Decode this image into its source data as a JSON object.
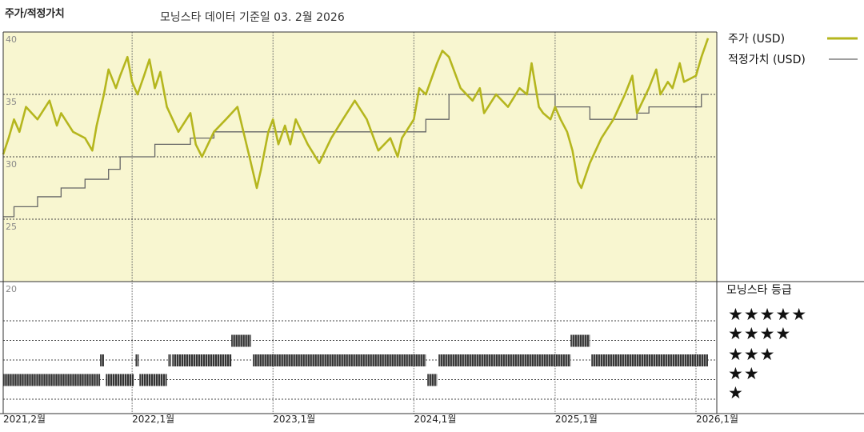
{
  "header": {
    "title": "주가/적정가치",
    "subtitle": "모닝스타 데이터 기준일 03. 2월 2026"
  },
  "colors": {
    "price_line": "#b5b61e",
    "fair_value_line": "#666666",
    "plot_bg": "#f8f6d0",
    "rating_bar": "#333333"
  },
  "legend": {
    "price": "주가 (USD)",
    "fair_value": "적정가치 (USD)",
    "rating_title": "모닝스타 등급",
    "stars": [
      "★★★★★",
      "★★★★",
      "★★★",
      "★★",
      "★"
    ]
  },
  "chart_data": {
    "type": "line",
    "y_ticks": [
      "40",
      "35",
      "30",
      "25",
      "20"
    ],
    "ylim": [
      20,
      40
    ],
    "x_ticks": [
      "2021,2월",
      "2022,1월",
      "2023,1월",
      "2024,1월",
      "2025,1월",
      "2026,1월"
    ],
    "xlim": [
      "2021-02",
      "2026-02"
    ],
    "series": [
      {
        "name": "주가 (USD)",
        "points": [
          [
            "2021-02",
            30.2
          ],
          [
            "2021-02-15",
            31.5
          ],
          [
            "2021-03",
            33.0
          ],
          [
            "2021-03-15",
            32.0
          ],
          [
            "2021-04",
            34.0
          ],
          [
            "2021-05",
            33.0
          ],
          [
            "2021-06",
            34.5
          ],
          [
            "2021-06-20",
            32.5
          ],
          [
            "2021-07",
            33.5
          ],
          [
            "2021-08",
            32.0
          ],
          [
            "2021-09",
            31.5
          ],
          [
            "2021-09-20",
            30.5
          ],
          [
            "2021-10",
            32.5
          ],
          [
            "2021-10-20",
            35.0
          ],
          [
            "2021-11",
            37.0
          ],
          [
            "2021-11-20",
            35.5
          ],
          [
            "2021-12",
            36.5
          ],
          [
            "2021-12-20",
            38.0
          ],
          [
            "2022-01",
            36.0
          ],
          [
            "2022-01-15",
            35.0
          ],
          [
            "2022-02",
            36.5
          ],
          [
            "2022-02-15",
            37.8
          ],
          [
            "2022-03",
            35.5
          ],
          [
            "2022-03-15",
            36.8
          ],
          [
            "2022-04",
            34.0
          ],
          [
            "2022-05",
            32.0
          ],
          [
            "2022-06",
            33.5
          ],
          [
            "2022-06-15",
            31.0
          ],
          [
            "2022-07",
            30.0
          ],
          [
            "2022-08",
            32.0
          ],
          [
            "2022-09",
            33.0
          ],
          [
            "2022-10",
            34.0
          ],
          [
            "2022-11",
            30.0
          ],
          [
            "2022-11-20",
            27.5
          ],
          [
            "2022-12",
            29.0
          ],
          [
            "2022-12-20",
            32.0
          ],
          [
            "2023-01",
            33.0
          ],
          [
            "2023-01-15",
            31.0
          ],
          [
            "2023-02",
            32.5
          ],
          [
            "2023-02-15",
            31.0
          ],
          [
            "2023-03",
            33.0
          ],
          [
            "2023-04",
            31.0
          ],
          [
            "2023-05",
            29.5
          ],
          [
            "2023-06",
            31.5
          ],
          [
            "2023-07",
            33.0
          ],
          [
            "2023-08",
            34.5
          ],
          [
            "2023-09",
            33.0
          ],
          [
            "2023-10",
            30.5
          ],
          [
            "2023-11",
            31.5
          ],
          [
            "2023-11-20",
            30.0
          ],
          [
            "2023-12",
            31.5
          ],
          [
            "2024-01",
            33.0
          ],
          [
            "2024-01-15",
            35.5
          ],
          [
            "2024-02",
            35.0
          ],
          [
            "2024-03",
            37.5
          ],
          [
            "2024-03-15",
            38.5
          ],
          [
            "2024-04",
            38.0
          ],
          [
            "2024-05",
            35.5
          ],
          [
            "2024-06",
            34.5
          ],
          [
            "2024-06-20",
            35.5
          ],
          [
            "2024-07",
            33.5
          ],
          [
            "2024-08",
            35.0
          ],
          [
            "2024-09",
            34.0
          ],
          [
            "2024-10",
            35.5
          ],
          [
            "2024-10-20",
            35.0
          ],
          [
            "2024-11",
            37.5
          ],
          [
            "2024-11-20",
            34.0
          ],
          [
            "2024-12",
            33.5
          ],
          [
            "2024-12-20",
            33.0
          ],
          [
            "2025-01",
            34.0
          ],
          [
            "2025-01-15",
            33.0
          ],
          [
            "2025-02",
            32.0
          ],
          [
            "2025-02-15",
            30.5
          ],
          [
            "2025-03",
            28.0
          ],
          [
            "2025-03-10",
            27.5
          ],
          [
            "2025-04",
            29.5
          ],
          [
            "2025-05",
            31.5
          ],
          [
            "2025-06",
            33.0
          ],
          [
            "2025-07",
            35.0
          ],
          [
            "2025-07-20",
            36.5
          ],
          [
            "2025-08",
            33.5
          ],
          [
            "2025-09",
            35.5
          ],
          [
            "2025-09-20",
            37.0
          ],
          [
            "2025-10",
            35.0
          ],
          [
            "2025-10-20",
            36.0
          ],
          [
            "2025-11",
            35.5
          ],
          [
            "2025-11-20",
            37.5
          ],
          [
            "2025-12",
            36.0
          ],
          [
            "2026-01",
            36.5
          ],
          [
            "2026-01-15",
            38.0
          ],
          [
            "2026-02",
            39.5
          ]
        ]
      },
      {
        "name": "적정가치 (USD)",
        "step_points": [
          [
            "2021-02",
            25.2
          ],
          [
            "2021-03",
            26.0
          ],
          [
            "2021-05",
            26.8
          ],
          [
            "2021-07",
            27.5
          ],
          [
            "2021-09",
            28.2
          ],
          [
            "2021-11",
            29.0
          ],
          [
            "2021-12",
            30.0
          ],
          [
            "2022-03",
            31.0
          ],
          [
            "2022-06",
            31.5
          ],
          [
            "2022-08",
            32.0
          ],
          [
            "2023-06",
            32.0
          ],
          [
            "2023-12",
            32.0
          ],
          [
            "2024-02",
            33.0
          ],
          [
            "2024-04",
            35.0
          ],
          [
            "2024-07",
            35.0
          ],
          [
            "2024-09",
            35.0
          ],
          [
            "2025-01",
            34.0
          ],
          [
            "2025-04",
            33.0
          ],
          [
            "2025-08",
            33.5
          ],
          [
            "2025-09",
            34.0
          ],
          [
            "2025-12",
            34.0
          ],
          [
            "2026-01-15",
            35.0
          ],
          [
            "2026-02",
            35.0
          ]
        ]
      }
    ],
    "ratings": {
      "name": "모닝스타 등급",
      "segments": [
        {
          "from": "2021-02",
          "to": "2021-10-10",
          "stars": 2
        },
        {
          "from": "2021-10-10",
          "to": "2021-10-20",
          "stars": 3
        },
        {
          "from": "2021-10-25",
          "to": "2022-01-05",
          "stars": 2
        },
        {
          "from": "2022-01-10",
          "to": "2022-01-18",
          "stars": 3
        },
        {
          "from": "2022-01-20",
          "to": "2022-04-01",
          "stars": 2
        },
        {
          "from": "2022-04-05",
          "to": "2022-04-12",
          "stars": 3
        },
        {
          "from": "2022-04-15",
          "to": "2022-09-15",
          "stars": 3
        },
        {
          "from": "2022-09-15",
          "to": "2022-11-05",
          "stars": 4
        },
        {
          "from": "2022-11-10",
          "to": "2024-02-01",
          "stars": 3
        },
        {
          "from": "2024-02-05",
          "to": "2024-03-01",
          "stars": 2
        },
        {
          "from": "2024-03-05",
          "to": "2025-02-10",
          "stars": 3
        },
        {
          "from": "2025-02-10",
          "to": "2025-04-01",
          "stars": 4
        },
        {
          "from": "2025-04-05",
          "to": "2026-02",
          "stars": 3
        }
      ]
    }
  }
}
